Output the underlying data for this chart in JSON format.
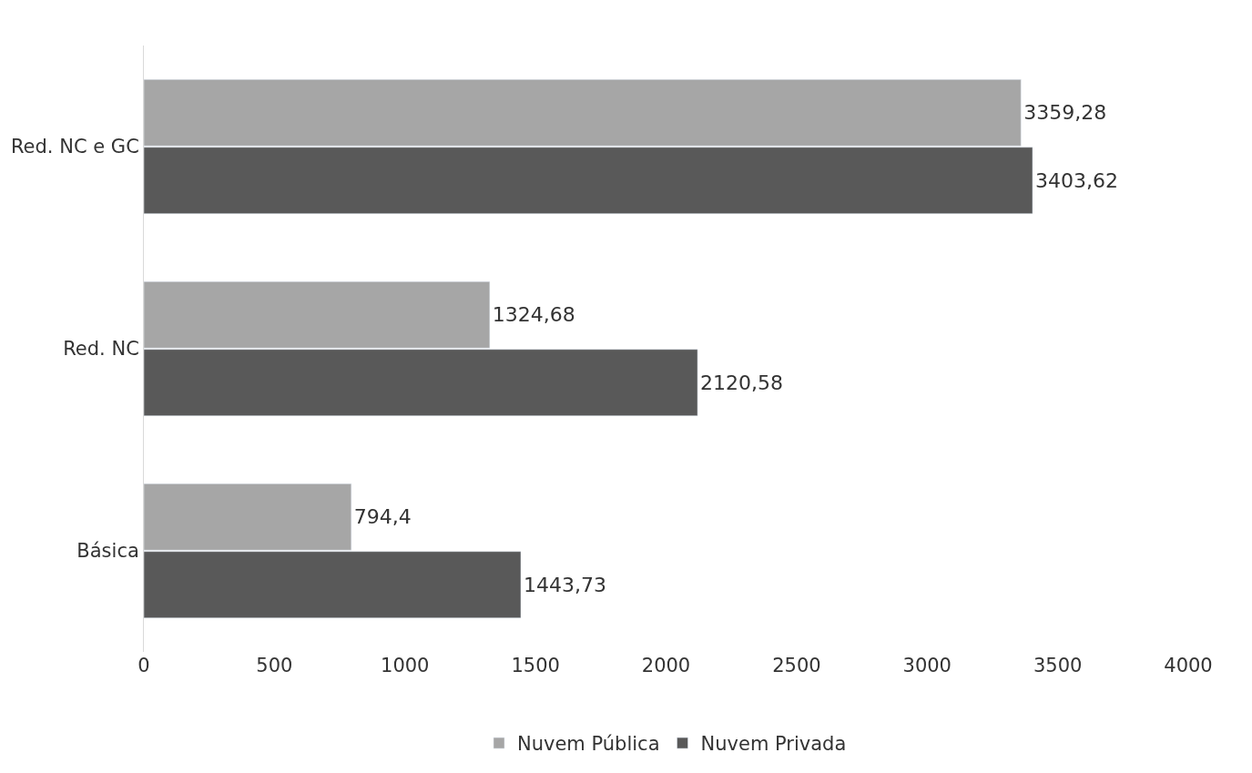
{
  "chart_data": {
    "type": "bar",
    "orientation": "horizontal",
    "categories": [
      "Red. NC e GC",
      "Red. NC",
      "Básica"
    ],
    "series": [
      {
        "name": "Nuvem Pública",
        "color": "#a6a6a6",
        "values": [
          3359.28,
          1324.68,
          794.4
        ],
        "value_labels": [
          "3359,28",
          "1324,68",
          "794,4"
        ]
      },
      {
        "name": "Nuvem Privada",
        "color": "#595959",
        "values": [
          3403.62,
          2120.58,
          1443.73
        ],
        "value_labels": [
          "3403,62",
          "2120,58",
          "1443,73"
        ]
      }
    ],
    "xlim": [
      0,
      4000
    ],
    "xticks": [
      0,
      500,
      1000,
      1500,
      2000,
      2500,
      3000,
      3500,
      4000
    ],
    "legend": "bottom"
  }
}
